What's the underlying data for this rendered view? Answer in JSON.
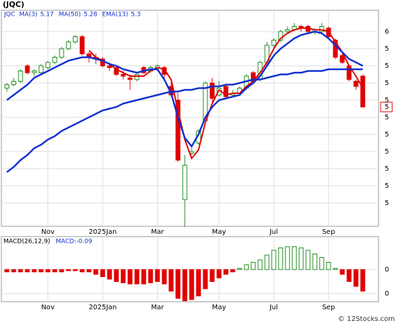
{
  "title": "(JQC)",
  "watermark": "© 12Stocks.com",
  "chart_data": [
    {
      "type": "candlestick",
      "symbol": "JQC",
      "categories": [
        null,
        null,
        null,
        null,
        null,
        null,
        "Nov",
        null,
        null,
        null,
        null,
        null,
        null,
        null,
        "2025Jan",
        null,
        null,
        null,
        null,
        null,
        null,
        null,
        "Mar",
        null,
        null,
        null,
        null,
        null,
        null,
        null,
        null,
        "May",
        null,
        null,
        null,
        null,
        null,
        null,
        null,
        "Jul",
        null,
        null,
        null,
        null,
        null,
        null,
        null,
        "Sep",
        null,
        null,
        null,
        null,
        null
      ],
      "ohlc": [
        [
          5.17,
          5.2,
          5.15,
          5.19
        ],
        [
          5.19,
          5.23,
          5.18,
          5.21
        ],
        [
          5.21,
          5.28,
          5.2,
          5.27
        ],
        [
          5.3,
          5.31,
          5.25,
          5.26
        ],
        [
          5.26,
          5.28,
          5.24,
          5.27
        ],
        [
          5.26,
          5.31,
          5.25,
          5.3
        ],
        [
          5.29,
          5.33,
          5.28,
          5.32
        ],
        [
          5.32,
          5.36,
          5.31,
          5.35
        ],
        [
          5.35,
          5.41,
          5.34,
          5.4
        ],
        [
          5.4,
          5.45,
          5.39,
          5.44
        ],
        [
          5.44,
          5.48,
          5.43,
          5.47
        ],
        [
          5.47,
          5.48,
          5.36,
          5.37
        ],
        [
          5.37,
          5.38,
          5.32,
          5.35
        ],
        [
          5.35,
          5.37,
          5.31,
          5.34
        ],
        [
          5.34,
          5.35,
          5.29,
          5.3
        ],
        [
          5.3,
          5.32,
          5.27,
          5.29
        ],
        [
          5.29,
          5.3,
          5.24,
          5.25
        ],
        [
          5.25,
          5.27,
          5.22,
          5.24
        ],
        [
          5.23,
          5.25,
          5.16,
          5.22
        ],
        [
          5.22,
          5.26,
          5.21,
          5.25
        ],
        [
          5.29,
          5.3,
          5.25,
          5.26
        ],
        [
          5.27,
          5.3,
          5.26,
          5.29
        ],
        [
          5.29,
          5.31,
          5.27,
          5.3
        ],
        [
          5.29,
          5.3,
          5.23,
          5.25
        ],
        [
          5.18,
          5.2,
          5.12,
          5.13
        ],
        [
          5.1,
          5.14,
          4.74,
          4.75
        ],
        [
          4.52,
          4.78,
          4.36,
          4.72
        ],
        [
          4.79,
          4.82,
          4.78,
          4.8
        ],
        [
          4.85,
          4.93,
          4.84,
          4.92
        ],
        [
          4.98,
          5.21,
          4.96,
          5.2
        ],
        [
          5.2,
          5.23,
          5.09,
          5.11
        ],
        [
          5.13,
          5.21,
          5.12,
          5.17
        ],
        [
          5.18,
          5.19,
          5.11,
          5.12
        ],
        [
          5.13,
          5.16,
          5.12,
          5.14
        ],
        [
          5.14,
          5.18,
          5.13,
          5.17
        ],
        [
          5.17,
          5.25,
          5.16,
          5.24
        ],
        [
          5.26,
          5.27,
          5.2,
          5.21
        ],
        [
          5.22,
          5.33,
          5.21,
          5.32
        ],
        [
          5.32,
          5.44,
          5.31,
          5.42
        ],
        [
          5.42,
          5.46,
          5.4,
          5.45
        ],
        [
          5.45,
          5.51,
          5.44,
          5.5
        ],
        [
          5.5,
          5.53,
          5.49,
          5.51
        ],
        [
          5.51,
          5.55,
          5.5,
          5.53
        ],
        [
          5.53,
          5.54,
          5.5,
          5.52
        ],
        [
          5.53,
          5.54,
          5.49,
          5.5
        ],
        [
          5.5,
          5.52,
          5.48,
          5.51
        ],
        [
          5.5,
          5.55,
          5.49,
          5.53
        ],
        [
          5.52,
          5.53,
          5.46,
          5.47
        ],
        [
          5.45,
          5.46,
          5.34,
          5.35
        ],
        [
          5.36,
          5.37,
          5.31,
          5.32
        ],
        [
          5.3,
          5.31,
          5.21,
          5.22
        ],
        [
          5.21,
          5.22,
          5.16,
          5.18
        ],
        [
          5.24,
          5.25,
          5.06,
          5.06
        ]
      ],
      "up_color": "#1a8a1a",
      "down_color": "#e00000",
      "series": [
        {
          "name": "MA(3)",
          "last": 5.17,
          "color": "#e00000",
          "width": 2,
          "values": [
            null,
            null,
            null,
            null,
            null,
            null,
            null,
            null,
            null,
            null,
            null,
            null,
            5.39,
            5.35,
            5.33,
            5.31,
            5.28,
            5.26,
            5.24,
            5.24,
            5.24,
            5.27,
            5.29,
            5.28,
            5.22,
            5.04,
            4.87,
            4.76,
            4.81,
            4.97,
            5.08,
            5.16,
            5.13,
            5.14,
            5.14,
            5.18,
            5.21,
            5.26,
            5.32,
            5.4,
            5.46,
            5.49,
            5.51,
            5.52,
            5.52,
            5.51,
            5.51,
            5.5,
            5.44,
            5.38,
            5.3,
            5.24,
            5.17
          ]
        },
        {
          "name": "MA(50)",
          "last": 5.28,
          "color": "#1030d0",
          "width": 2.5,
          "values": [
            4.68,
            4.71,
            4.75,
            4.78,
            4.82,
            4.84,
            4.87,
            4.89,
            4.92,
            4.94,
            4.96,
            4.98,
            5.0,
            5.02,
            5.04,
            5.05,
            5.06,
            5.08,
            5.09,
            5.1,
            5.11,
            5.12,
            5.13,
            5.14,
            5.15,
            5.15,
            5.16,
            5.16,
            5.17,
            5.17,
            5.18,
            5.18,
            5.19,
            5.19,
            5.2,
            5.21,
            5.22,
            5.22,
            5.23,
            5.24,
            5.25,
            5.25,
            5.26,
            5.26,
            5.27,
            5.27,
            5.27,
            5.28,
            5.28,
            5.28,
            5.28,
            5.28,
            5.28
          ]
        },
        {
          "name": "EMA(13)",
          "last": 5.3,
          "color": "#1030d0",
          "width": 2.5,
          "values": [
            5.1,
            5.13,
            5.16,
            5.19,
            5.23,
            5.25,
            5.27,
            5.29,
            5.31,
            5.33,
            5.34,
            5.35,
            5.35,
            5.34,
            5.33,
            5.31,
            5.3,
            5.28,
            5.27,
            5.26,
            5.27,
            5.28,
            5.28,
            5.22,
            5.14,
            5.0,
            4.88,
            4.83,
            4.9,
            5.0,
            5.06,
            5.1,
            5.11,
            5.12,
            5.13,
            5.17,
            5.2,
            5.24,
            5.3,
            5.36,
            5.4,
            5.43,
            5.46,
            5.48,
            5.49,
            5.5,
            5.49,
            5.46,
            5.42,
            5.38,
            5.34,
            5.32,
            5.3
          ]
        }
      ],
      "ylim": [
        4.364,
        5.624
      ],
      "yticks": [
        {
          "value": 5.5,
          "label": "6"
        },
        {
          "value": 5.4,
          "label": "5"
        },
        {
          "value": 5.3,
          "label": "5"
        },
        {
          "value": 5.2,
          "label": "5"
        },
        {
          "value": 5.1,
          "label": "5"
        },
        {
          "value": 5.0,
          "label": "5"
        },
        {
          "value": 4.9,
          "label": "5"
        },
        {
          "value": 4.8,
          "label": "5"
        },
        {
          "value": 4.7,
          "label": "5"
        },
        {
          "value": 4.6,
          "label": "5"
        },
        {
          "value": 4.5,
          "label": "5"
        }
      ],
      "last_price": {
        "value": 5.06,
        "label": "5"
      },
      "grid": true
    },
    {
      "type": "macd",
      "label": "MACD(26,12,9)",
      "current_label": "MACD:",
      "current": -0.09,
      "categories": [
        null,
        null,
        null,
        null,
        null,
        null,
        "Nov",
        null,
        null,
        null,
        null,
        null,
        null,
        null,
        "2025Jan",
        null,
        null,
        null,
        null,
        null,
        null,
        null,
        "Mar",
        null,
        null,
        null,
        null,
        null,
        null,
        null,
        null,
        "May",
        null,
        null,
        null,
        null,
        null,
        null,
        null,
        "Jul",
        null,
        null,
        null,
        null,
        null,
        null,
        null,
        "Sep",
        null,
        null,
        null,
        null,
        null
      ],
      "values": [
        -0.01,
        -0.01,
        -0.01,
        -0.01,
        -0.01,
        -0.01,
        -0.01,
        -0.01,
        -0.01,
        -0.005,
        -0.005,
        -0.01,
        -0.01,
        -0.02,
        -0.03,
        -0.04,
        -0.05,
        -0.055,
        -0.06,
        -0.06,
        -0.06,
        -0.055,
        -0.05,
        -0.06,
        -0.09,
        -0.12,
        -0.13,
        -0.125,
        -0.11,
        -0.08,
        -0.05,
        -0.035,
        -0.02,
        -0.01,
        0.005,
        0.02,
        0.03,
        0.04,
        0.06,
        0.08,
        0.09,
        0.095,
        0.095,
        0.09,
        0.08,
        0.065,
        0.05,
        0.03,
        0.005,
        -0.02,
        -0.05,
        -0.07,
        -0.09
      ],
      "up_color": "#1a8a1a",
      "down_color": "#e00000",
      "ylim": [
        -0.134,
        0.137
      ],
      "yticks": [
        0,
        {
          "value": -0.1,
          "label": "0"
        }
      ],
      "grid": true
    }
  ]
}
